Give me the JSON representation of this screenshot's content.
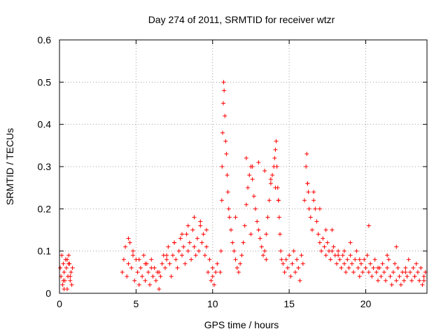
{
  "chart_data": {
    "type": "scatter",
    "title": "Day 274 of 2011, SRMTID for receiver wtzr",
    "xlabel": "GPS time / hours",
    "ylabel": "SRMTID / TECUs",
    "xlim": [
      0,
      24
    ],
    "ylim": [
      0,
      0.6
    ],
    "x_ticks": [
      0,
      5,
      10,
      15,
      20
    ],
    "x_tick_labels": [
      "0",
      "5",
      "10",
      "15",
      "20"
    ],
    "y_ticks": [
      0,
      0.1,
      0.2,
      0.3,
      0.4,
      0.5,
      0.6
    ],
    "y_tick_labels": [
      "0",
      "0.1",
      "0.2",
      "0.3",
      "0.4",
      "0.5",
      "0.6"
    ],
    "grid": true,
    "marker": "plus",
    "color": "#ff0000",
    "series": [
      {
        "name": "SRMTID",
        "x": [
          0.05,
          0.1,
          0.15,
          0.2,
          0.25,
          0.3,
          0.35,
          0.4,
          0.45,
          0.5,
          0.55,
          0.6,
          0.65,
          0.7,
          0.75,
          0.8,
          0.85,
          0.3,
          0.5,
          0.7,
          0.25,
          0.6,
          4.1,
          4.2,
          4.3,
          4.4,
          4.5,
          4.6,
          4.7,
          4.8,
          4.9,
          5.0,
          5.1,
          5.2,
          5.3,
          5.4,
          5.5,
          5.6,
          5.7,
          5.8,
          5.9,
          6.0,
          6.1,
          6.2,
          6.3,
          6.4,
          6.5,
          6.6,
          6.7,
          6.8,
          6.9,
          7.0,
          7.1,
          7.2,
          7.3,
          7.4,
          7.5,
          7.6,
          7.7,
          7.8,
          7.9,
          8.0,
          8.1,
          8.2,
          8.3,
          8.4,
          8.5,
          8.6,
          8.7,
          8.8,
          8.9,
          9.0,
          9.1,
          9.2,
          9.3,
          9.4,
          9.5,
          9.6,
          9.7,
          9.8,
          9.9,
          10.0,
          10.1,
          10.2,
          10.3,
          4.5,
          4.8,
          5.2,
          5.6,
          6.0,
          6.5,
          7.0,
          7.5,
          8.0,
          8.4,
          8.8,
          9.2,
          9.6,
          10.0,
          10.5,
          10.55,
          10.6,
          10.62,
          10.65,
          10.7,
          10.72,
          10.75,
          10.8,
          10.85,
          10.9,
          10.95,
          11.0,
          11.05,
          11.1,
          11.2,
          11.3,
          11.4,
          11.5,
          11.6,
          11.7,
          11.8,
          11.9,
          12.0,
          12.1,
          12.2,
          12.3,
          12.4,
          12.5,
          12.6,
          12.7,
          12.8,
          12.9,
          13.0,
          13.1,
          13.2,
          13.3,
          13.4,
          13.5,
          13.6,
          13.7,
          13.8,
          13.9,
          14.0,
          14.05,
          14.1,
          14.15,
          14.2,
          14.25,
          14.3,
          14.35,
          14.4,
          14.45,
          14.5,
          12.2,
          12.6,
          13.0,
          13.4,
          13.8,
          14.1,
          14.3,
          11.5,
          12.5,
          13.5,
          14.6,
          14.7,
          14.8,
          14.9,
          15.0,
          15.1,
          15.2,
          15.3,
          15.4,
          15.5,
          15.6,
          15.7,
          15.8,
          15.9,
          16.0,
          16.1,
          16.15,
          16.2,
          16.25,
          16.3,
          16.4,
          16.5,
          16.6,
          16.7,
          16.8,
          16.9,
          17.0,
          17.1,
          17.2,
          17.3,
          17.4,
          17.5,
          17.6,
          17.7,
          17.8,
          17.9,
          18.0,
          18.1,
          18.2,
          18.3,
          18.4,
          18.5,
          18.6,
          18.7,
          18.8,
          18.9,
          19.0,
          19.1,
          19.2,
          19.3,
          19.4,
          19.5,
          19.6,
          19.7,
          19.8,
          19.9,
          20.0,
          20.1,
          20.2,
          20.3,
          20.4,
          20.5,
          20.6,
          20.7,
          20.8,
          20.9,
          21.0,
          21.1,
          21.2,
          21.3,
          21.4,
          21.5,
          21.6,
          21.7,
          21.8,
          21.9,
          22.0,
          22.1,
          22.2,
          22.3,
          22.4,
          22.5,
          22.6,
          22.7,
          22.8,
          22.9,
          23.0,
          23.1,
          23.2,
          23.3,
          23.4,
          23.5,
          23.6,
          23.7,
          23.8,
          23.9,
          16.2,
          16.6,
          17.0,
          17.4,
          17.8,
          18.2,
          18.6,
          19.0,
          19.6,
          20.2,
          20.8,
          21.4,
          22.0,
          22.6,
          23.2,
          23.8
        ],
        "y": [
          0.06,
          0.04,
          0.09,
          0.02,
          0.07,
          0.05,
          0.03,
          0.08,
          0.06,
          0.01,
          0.04,
          0.09,
          0.07,
          0.03,
          0.05,
          0.02,
          0.06,
          0.01,
          0.08,
          0.04,
          0.03,
          0.07,
          0.05,
          0.08,
          0.11,
          0.04,
          0.07,
          0.12,
          0.06,
          0.09,
          0.03,
          0.08,
          0.05,
          0.02,
          0.06,
          0.04,
          0.09,
          0.03,
          0.07,
          0.05,
          0.02,
          0.08,
          0.04,
          0.06,
          0.03,
          0.05,
          0.01,
          0.04,
          0.07,
          0.09,
          0.06,
          0.08,
          0.11,
          0.07,
          0.04,
          0.09,
          0.12,
          0.08,
          0.06,
          0.1,
          0.13,
          0.09,
          0.11,
          0.07,
          0.14,
          0.1,
          0.12,
          0.08,
          0.15,
          0.11,
          0.09,
          0.13,
          0.1,
          0.16,
          0.12,
          0.14,
          0.09,
          0.11,
          0.05,
          0.08,
          0.03,
          0.06,
          0.02,
          0.05,
          0.07,
          0.13,
          0.1,
          0.08,
          0.07,
          0.06,
          0.05,
          0.09,
          0.12,
          0.14,
          0.16,
          0.18,
          0.17,
          0.15,
          0.04,
          0.05,
          0.1,
          0.22,
          0.3,
          0.38,
          0.45,
          0.5,
          0.48,
          0.42,
          0.36,
          0.33,
          0.28,
          0.24,
          0.2,
          0.18,
          0.15,
          0.12,
          0.1,
          0.08,
          0.06,
          0.05,
          0.07,
          0.09,
          0.12,
          0.16,
          0.21,
          0.25,
          0.28,
          0.3,
          0.27,
          0.23,
          0.2,
          0.17,
          0.15,
          0.13,
          0.11,
          0.09,
          0.1,
          0.14,
          0.18,
          0.22,
          0.26,
          0.28,
          0.3,
          0.32,
          0.34,
          0.36,
          0.3,
          0.25,
          0.22,
          0.18,
          0.14,
          0.1,
          0.08,
          0.32,
          0.3,
          0.31,
          0.29,
          0.27,
          0.25,
          0.22,
          0.18,
          0.14,
          0.08,
          0.07,
          0.05,
          0.08,
          0.06,
          0.09,
          0.04,
          0.07,
          0.1,
          0.05,
          0.08,
          0.06,
          0.03,
          0.09,
          0.07,
          0.22,
          0.3,
          0.33,
          0.26,
          0.24,
          0.2,
          0.18,
          0.15,
          0.22,
          0.2,
          0.17,
          0.14,
          0.12,
          0.1,
          0.13,
          0.11,
          0.09,
          0.12,
          0.1,
          0.08,
          0.15,
          0.11,
          0.09,
          0.07,
          0.1,
          0.08,
          0.06,
          0.09,
          0.07,
          0.05,
          0.08,
          0.06,
          0.09,
          0.07,
          0.05,
          0.08,
          0.1,
          0.06,
          0.04,
          0.07,
          0.05,
          0.08,
          0.06,
          0.09,
          0.05,
          0.07,
          0.04,
          0.06,
          0.08,
          0.05,
          0.03,
          0.06,
          0.04,
          0.07,
          0.05,
          0.03,
          0.06,
          0.08,
          0.04,
          0.02,
          0.05,
          0.07,
          0.03,
          0.06,
          0.04,
          0.02,
          0.05,
          0.03,
          0.06,
          0.04,
          0.08,
          0.05,
          0.03,
          0.06,
          0.04,
          0.07,
          0.05,
          0.03,
          0.06,
          0.02,
          0.04,
          0.05,
          0.26,
          0.24,
          0.2,
          0.15,
          0.1,
          0.09,
          0.1,
          0.12,
          0.08,
          0.16,
          0.06,
          0.09,
          0.11,
          0.05,
          0.04,
          0.03
        ]
      }
    ]
  }
}
